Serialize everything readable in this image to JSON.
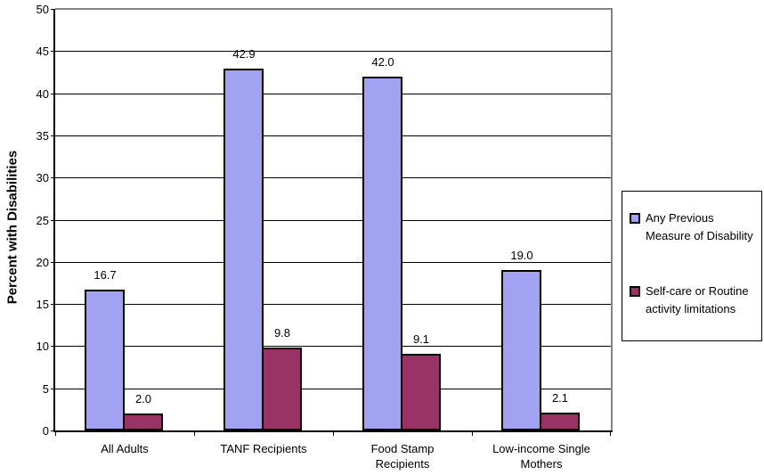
{
  "chart_data": {
    "type": "bar",
    "title": "",
    "ylabel": "Percent with Disabilities",
    "xlabel": "",
    "ylim": [
      0,
      50
    ],
    "ytick_step": 5,
    "grid": true,
    "data_labels": true,
    "legend_position": "right",
    "categories": [
      "All Adults",
      "TANF Recipients",
      "Food Stamp\nRecipients",
      "Low-income Single\nMothers"
    ],
    "series": [
      {
        "name": "Any Previous Measure of Disability",
        "legend_lines": [
          "Any Previous",
          "Measure of Disability"
        ],
        "color": "#A2A2F2",
        "values": [
          16.7,
          42.9,
          42.0,
          19.0
        ]
      },
      {
        "name": "Self-care or Routine activity limitations",
        "legend_lines": [
          "Self-care or Routine",
          "activity limitations"
        ],
        "color": "#993366",
        "values": [
          2.0,
          9.8,
          9.1,
          2.1
        ]
      }
    ],
    "colors": {
      "gridline": "#000000",
      "axis": "#000000",
      "plot_border": "#848484",
      "bar_border": "#000000",
      "background": "#FFFFFF"
    }
  }
}
